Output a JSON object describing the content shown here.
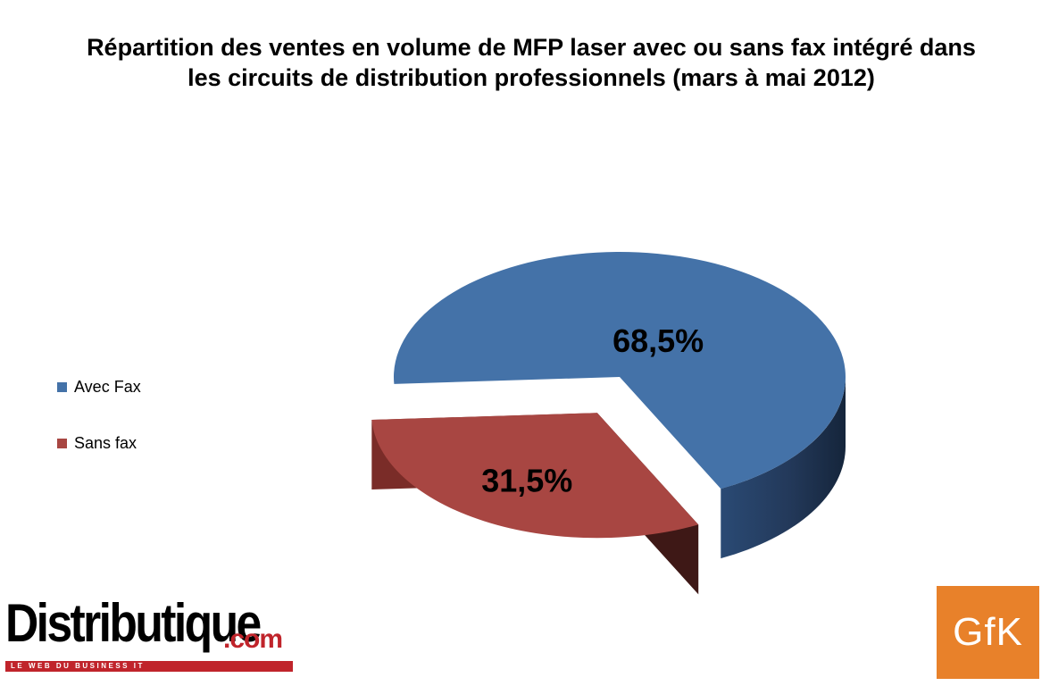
{
  "chart_data": {
    "type": "pie",
    "title_lines": [
      "Répartition des ventes en volume de MFP laser avec ou sans fax intégré dans",
      "les circuits de distribution professionnels (mars à mai 2012)"
    ],
    "categories": [
      "Avec Fax",
      "Sans fax"
    ],
    "values": [
      68.5,
      31.5
    ],
    "data_labels": [
      "68,5%",
      "31,5%"
    ],
    "colors": [
      "#4472a8",
      "#a84642"
    ],
    "legend": {
      "placement": "left",
      "entries": [
        "Avec Fax",
        "Sans fax"
      ]
    },
    "style": "3d-exploded"
  },
  "logos": {
    "distributique": {
      "main": "Distributique",
      "suffix": ".com",
      "tagline": "LE WEB DU BUSINESS IT"
    },
    "gfk": "GfK"
  }
}
